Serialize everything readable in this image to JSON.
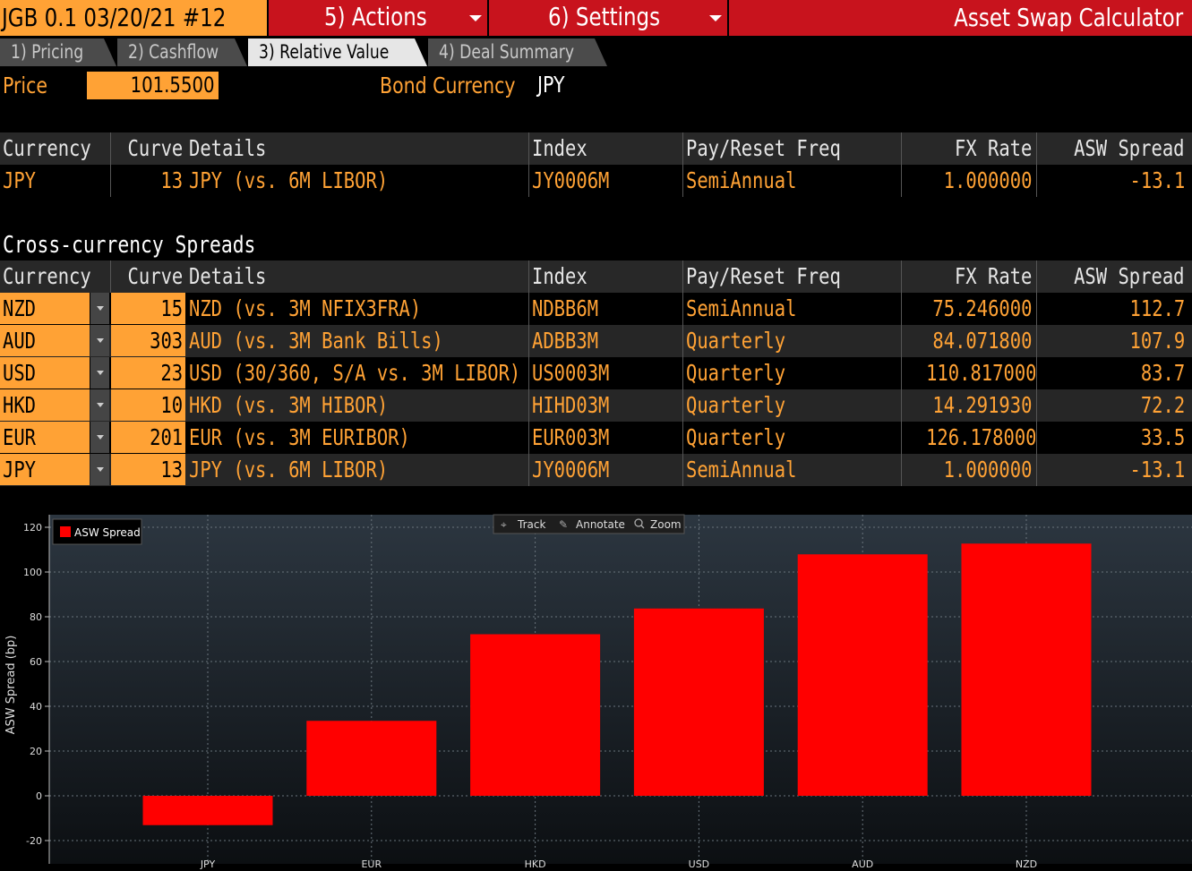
{
  "header": {
    "ticker": "JGB 0.1 03/20/21 #12",
    "actions_menu": "5) Actions",
    "settings_menu": "6) Settings",
    "app_title": "Asset Swap Calculator"
  },
  "tabs": [
    {
      "label": "1) Pricing"
    },
    {
      "label": "2) Cashflow"
    },
    {
      "label": "3) Relative Value"
    },
    {
      "label": "4) Deal Summary"
    }
  ],
  "price": {
    "label": "Price",
    "value": "101.5500"
  },
  "bond_currency": {
    "label": "Bond Currency",
    "value": "JPY"
  },
  "columns": {
    "currency": "Currency",
    "curve": "Curve",
    "details": "Details",
    "index": "Index",
    "freq": "Pay/Reset Freq",
    "fx": "FX Rate",
    "asw": "ASW Spread"
  },
  "base_row": {
    "currency": "JPY",
    "curve": "13",
    "details": "JPY (vs. 6M LIBOR)",
    "index": "JY0006M",
    "freq": "SemiAnnual",
    "fx": "1.000000",
    "asw": "-13.1"
  },
  "xccy_title": "Cross-currency Spreads",
  "xccy_rows": [
    {
      "currency": "NZD",
      "curve": "15",
      "details": "NZD (vs. 3M NFIX3FRA)",
      "index": "NDBB6M",
      "freq": "SemiAnnual",
      "fx": "75.246000",
      "asw": "112.7"
    },
    {
      "currency": "AUD",
      "curve": "303",
      "details": "AUD (vs. 3M Bank Bills)",
      "index": "ADBB3M",
      "freq": "Quarterly",
      "fx": "84.071800",
      "asw": "107.9"
    },
    {
      "currency": "USD",
      "curve": "23",
      "details": "USD (30/360, S/A vs. 3M LIBOR)",
      "index": "US0003M",
      "freq": "Quarterly",
      "fx": "110.817000",
      "asw": "83.7"
    },
    {
      "currency": "HKD",
      "curve": "10",
      "details": "HKD (vs. 3M HIBOR)",
      "index": "HIHD03M",
      "freq": "Quarterly",
      "fx": "14.291930",
      "asw": "72.2"
    },
    {
      "currency": "EUR",
      "curve": "201",
      "details": "EUR (vs. 3M EURIBOR)",
      "index": "EUR003M",
      "freq": "Quarterly",
      "fx": "126.178000",
      "asw": "33.5"
    },
    {
      "currency": "JPY",
      "curve": "13",
      "details": "JPY (vs. 6M LIBOR)",
      "index": "JY0006M",
      "freq": "SemiAnnual",
      "fx": "1.000000",
      "asw": "-13.1"
    }
  ],
  "chart_toolbar": {
    "track": "Track",
    "annotate": "Annotate",
    "zoom": "Zoom"
  },
  "chart_data": {
    "type": "bar",
    "categories": [
      "JPY",
      "EUR",
      "HKD",
      "USD",
      "AUD",
      "NZD"
    ],
    "series": [
      {
        "name": "ASW Spread",
        "values": [
          -13.1,
          33.5,
          72.2,
          83.7,
          107.9,
          112.7
        ]
      }
    ],
    "ylabel": "ASW Spread (bp)",
    "ylim": [
      -20,
      120
    ],
    "yticks": [
      -20,
      0,
      20,
      40,
      60,
      80,
      100,
      120
    ],
    "grid": true,
    "legend": "top-left",
    "bar_color": "#ff0000"
  }
}
